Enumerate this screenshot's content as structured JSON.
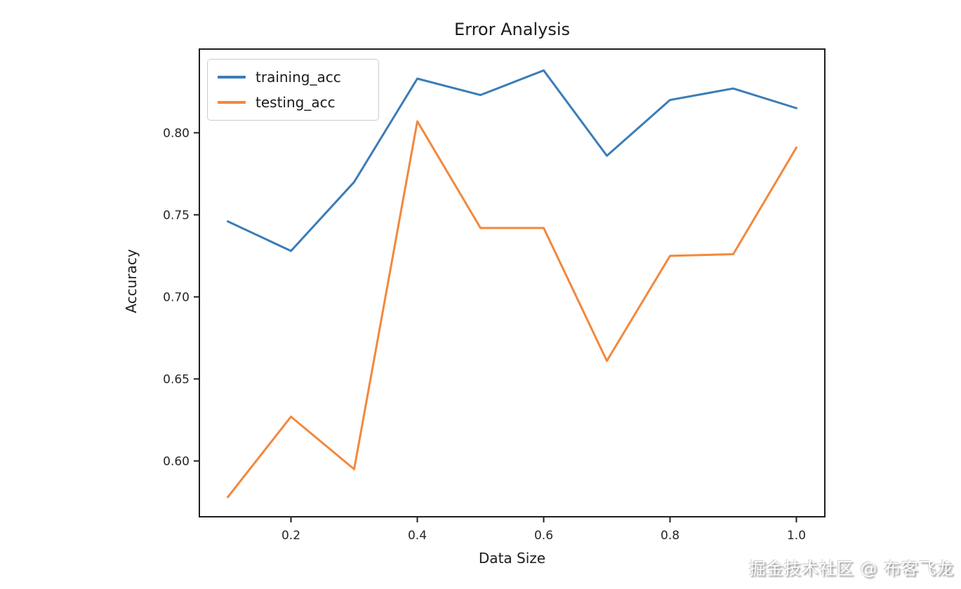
{
  "watermark": {
    "text": "掘金技术社区 @ 布客飞龙"
  },
  "colors": {
    "axis": "#1f1f1f",
    "tick_text": "#262626",
    "legend_border": "#cccccc",
    "watermark_text": "#ffffff"
  },
  "chart_data": {
    "type": "line",
    "title": "Error Analysis",
    "xlabel": "Data Size",
    "ylabel": "Accuracy",
    "x": [
      0.1,
      0.2,
      0.3,
      0.4,
      0.5,
      0.6,
      0.7,
      0.8,
      0.9,
      1.0
    ],
    "series": [
      {
        "name": "training_acc",
        "color": "#3b7cb8",
        "values": [
          0.746,
          0.728,
          0.77,
          0.833,
          0.823,
          0.838,
          0.786,
          0.82,
          0.827,
          0.815
        ]
      },
      {
        "name": "testing_acc",
        "color": "#f2883c",
        "values": [
          0.578,
          0.627,
          0.595,
          0.807,
          0.742,
          0.742,
          0.661,
          0.725,
          0.726,
          0.791
        ]
      }
    ],
    "xlim": [
      0.055,
      1.045
    ],
    "ylim": [
      0.566,
      0.851
    ],
    "xticks": [
      0.2,
      0.4,
      0.6,
      0.8,
      1.0
    ],
    "yticks": [
      0.6,
      0.65,
      0.7,
      0.75,
      0.8
    ],
    "grid": false,
    "legend_position": "upper left"
  }
}
